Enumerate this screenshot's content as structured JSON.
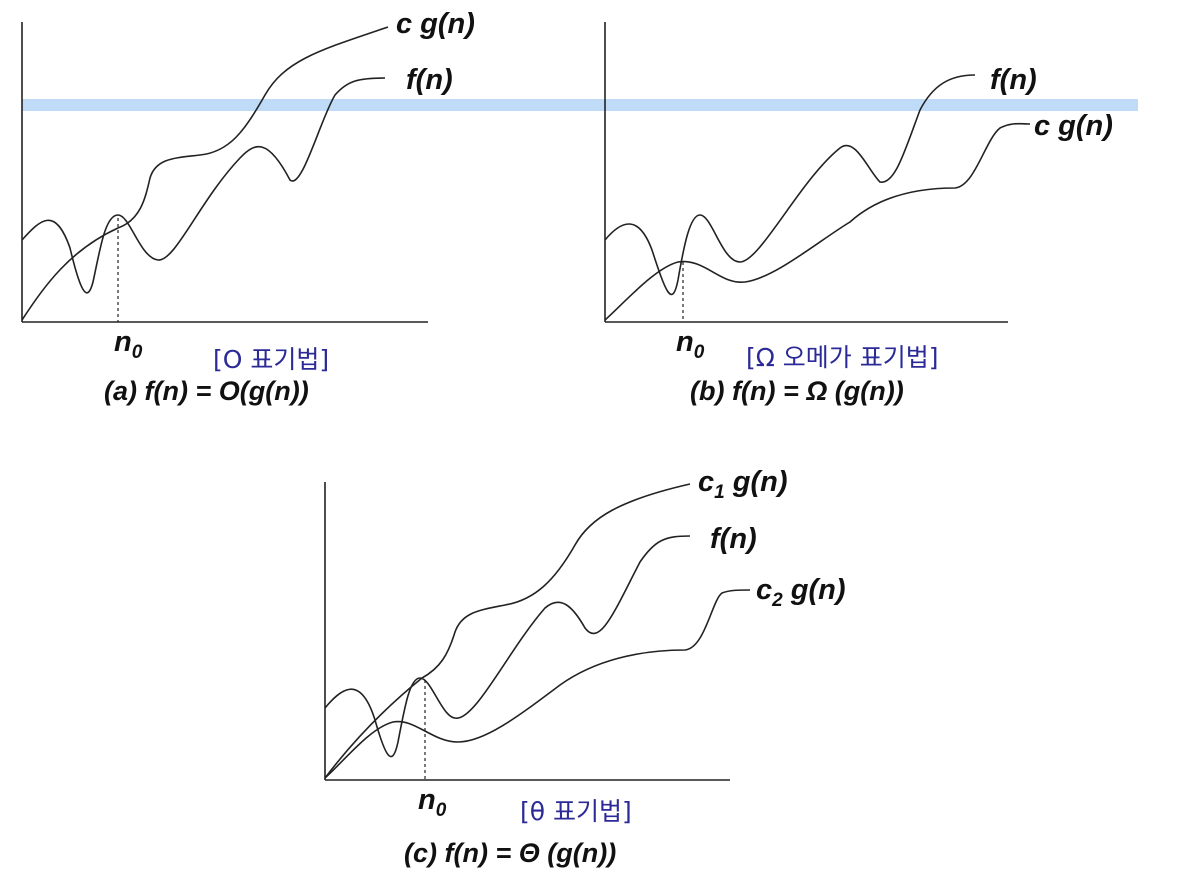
{
  "panel_a": {
    "cg_label": "c g(n)",
    "f_label": "f(n)",
    "n0_label": "n",
    "n0_sub": "0",
    "notation": "[O 표기법]",
    "caption": "(a)   f(n)  =  O(g(n))"
  },
  "panel_b": {
    "f_label": "f(n)",
    "cg_label": "c g(n)",
    "n0_label": "n",
    "n0_sub": "0",
    "notation": "[Ω 오메가 표기법]",
    "caption": "(b)  f(n)  =  Ω (g(n))"
  },
  "panel_c": {
    "c1_prefix": "c",
    "c1_sub": "1",
    "c1_suffix": " g(n)",
    "f_label": "f(n)",
    "c2_prefix": "c",
    "c2_sub": "2",
    "c2_suffix": " g(n)",
    "n0_label": "n",
    "n0_sub": "0",
    "notation": "[θ 표기법]",
    "caption": "(c)  f(n)   =   Θ (g(n))"
  },
  "colors": {
    "highlight": "#a9cff5",
    "notation_text": "#2b2a96"
  }
}
